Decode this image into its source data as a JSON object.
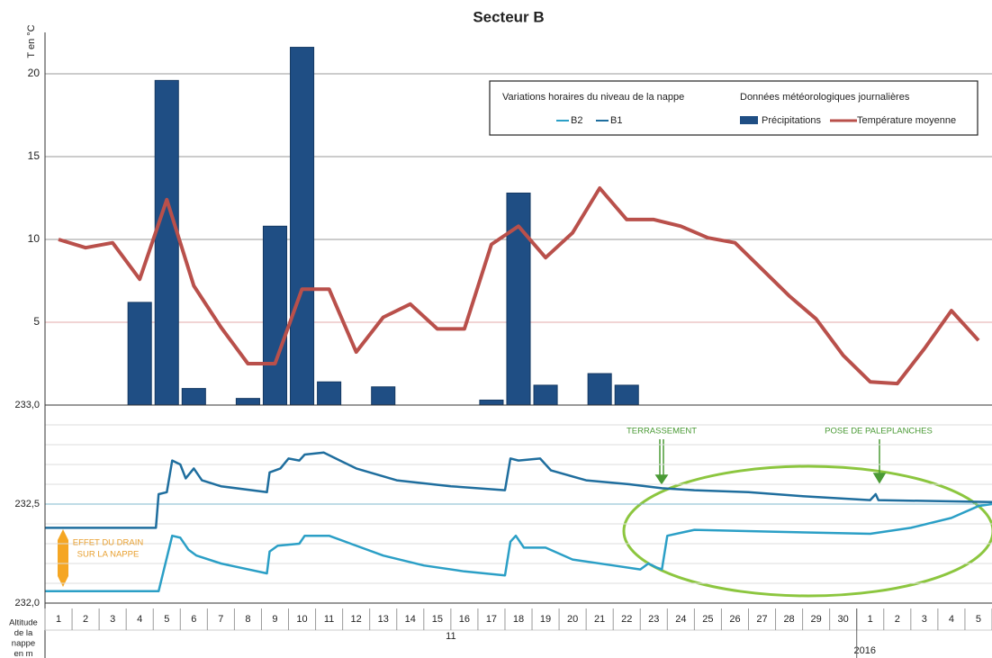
{
  "chart_data": [
    {
      "type": "bar-line",
      "title": "Secteur B",
      "y_axis_title": "T en °C",
      "categories": [
        "1",
        "2",
        "3",
        "4",
        "5",
        "6",
        "7",
        "8",
        "9",
        "10",
        "11",
        "12",
        "13",
        "14",
        "15",
        "16",
        "17",
        "18",
        "19",
        "20",
        "21",
        "22",
        "23",
        "24",
        "25",
        "26",
        "27",
        "28",
        "29",
        "30",
        "1",
        "2",
        "3",
        "4",
        "5"
      ],
      "category_groups": [
        {
          "label": "11",
          "size": 30
        },
        {
          "label": "2016",
          "size": 5
        }
      ],
      "row_label": [
        "Altitude",
        "de la",
        "nappe",
        "en m"
      ],
      "legend_groups": [
        "Variations horaires du niveau de la nappe",
        "Données météorologiques journalières"
      ],
      "series": [
        {
          "name": "Précipitations",
          "kind": "bar",
          "color": "#1f4e84",
          "values": [
            0,
            0,
            0,
            6.2,
            19.6,
            1.0,
            0,
            0.4,
            10.8,
            21.6,
            1.4,
            0,
            1.1,
            0,
            0,
            0,
            0.3,
            12.8,
            1.2,
            0,
            1.9,
            1.2,
            0,
            0,
            0,
            0,
            0,
            0,
            0,
            0,
            0,
            0,
            0,
            0,
            0
          ]
        },
        {
          "name": "Température moyenne",
          "kind": "line",
          "color": "#b9504b",
          "values": [
            10.0,
            9.5,
            9.8,
            7.6,
            12.4,
            7.2,
            4.7,
            2.5,
            2.5,
            7.0,
            7.0,
            3.2,
            5.3,
            6.1,
            4.6,
            4.6,
            9.7,
            10.8,
            8.9,
            10.4,
            13.1,
            11.2,
            11.2,
            10.8,
            10.1,
            9.8,
            8.2,
            6.6,
            5.2,
            3.0,
            1.4,
            1.3,
            3.4,
            5.7,
            3.9
          ]
        }
      ],
      "ylim": [
        0,
        22.5
      ],
      "yticks": [
        5,
        10,
        15,
        20
      ],
      "grid": true
    },
    {
      "type": "line",
      "xlim": [
        0,
        35
      ],
      "ylim": [
        232,
        233
      ],
      "yticks": [
        {
          "value": 232,
          "label": "232,0"
        },
        {
          "value": 232.5,
          "label": "232,5"
        },
        {
          "value": 233,
          "label": "233,0"
        }
      ],
      "yminorticks": [
        232.1,
        232.2,
        232.3,
        232.4,
        232.6,
        232.7,
        232.8,
        232.9
      ],
      "grid": true,
      "series": [
        {
          "name": "B2",
          "color": "#2b9fc6",
          "x": [
            0,
            4.2,
            4.7,
            5.0,
            5.3,
            5.6,
            6.5,
            8.2,
            8.3,
            8.6,
            9.4,
            9.6,
            10.5,
            11.3,
            12.5,
            14,
            15.5,
            17,
            17.2,
            17.4,
            17.7,
            18.5,
            19.5,
            21,
            22.0,
            22.3,
            22.6,
            22.8,
            23.0,
            24,
            27,
            30.5,
            32,
            33.5,
            34.5,
            35
          ],
          "values": [
            232.06,
            232.06,
            232.34,
            232.33,
            232.27,
            232.24,
            232.2,
            232.15,
            232.26,
            232.29,
            232.3,
            232.34,
            232.34,
            232.3,
            232.24,
            232.19,
            232.16,
            232.14,
            232.31,
            232.34,
            232.28,
            232.28,
            232.22,
            232.19,
            232.17,
            232.2,
            232.18,
            232.17,
            232.34,
            232.37,
            232.36,
            232.35,
            232.38,
            232.43,
            232.49,
            232.5
          ]
        },
        {
          "name": "B1",
          "color": "#1f6e9e",
          "x": [
            0,
            4.1,
            4.2,
            4.5,
            4.7,
            5.0,
            5.2,
            5.5,
            5.8,
            6.5,
            8.2,
            8.3,
            8.7,
            9.0,
            9.4,
            9.6,
            10.3,
            11.5,
            13,
            15,
            17,
            17.2,
            17.5,
            18.3,
            18.7,
            20,
            21.6,
            22.8,
            24,
            26,
            28,
            30.5,
            30.7,
            30.8,
            35
          ],
          "values": [
            232.38,
            232.38,
            232.55,
            232.56,
            232.72,
            232.7,
            232.63,
            232.68,
            232.62,
            232.59,
            232.56,
            232.66,
            232.68,
            232.73,
            232.72,
            232.75,
            232.76,
            232.68,
            232.62,
            232.59,
            232.57,
            232.73,
            232.72,
            232.73,
            232.67,
            232.62,
            232.6,
            232.58,
            232.57,
            232.56,
            232.54,
            232.52,
            232.55,
            232.52,
            232.51
          ]
        }
      ],
      "annotations": [
        "TERRASSEMENT",
        "POSE DE PALEPLANCHES",
        "EFFET DU DRAIN",
        "SUR LA NAPPE"
      ]
    }
  ]
}
